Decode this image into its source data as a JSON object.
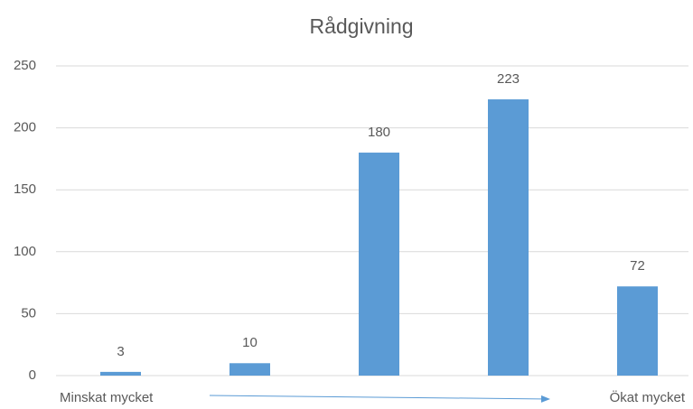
{
  "chart_data": {
    "type": "bar",
    "title": "Rådgivning",
    "categories": [
      "Minskat mycket",
      null,
      null,
      null,
      "Ökat mycket"
    ],
    "values": [
      3,
      10,
      180,
      223,
      72
    ],
    "color": "#5b9bd5",
    "ylim": [
      0,
      250
    ],
    "yticks": [
      0,
      50,
      100,
      150,
      200,
      250
    ],
    "grid": true
  }
}
